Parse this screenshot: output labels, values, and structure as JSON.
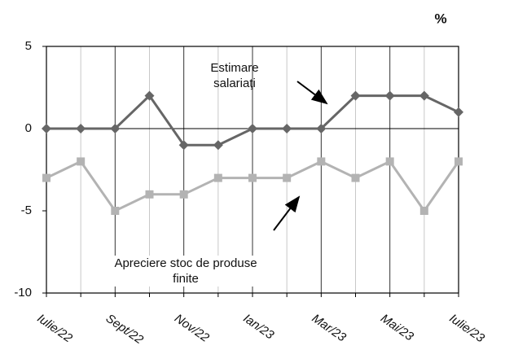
{
  "chart_data": {
    "type": "line",
    "unit": "%",
    "categories": [
      "Iulie/22",
      null,
      "Sept/22",
      null,
      "Nov/22",
      null,
      "Ian/23",
      null,
      "Mar/23",
      null,
      "Mai/23",
      null,
      "Iulie/23"
    ],
    "series": [
      {
        "name": "Estimare salariaţi",
        "color": "#666666",
        "marker": "diamond",
        "values": [
          0,
          0,
          0,
          2,
          -1,
          -1,
          0,
          0,
          0,
          2,
          2,
          2,
          1
        ]
      },
      {
        "name": "Apreciere stoc de produse finite",
        "color": "#b3b3b3",
        "marker": "square",
        "values": [
          -3,
          -2,
          -5,
          -4,
          -4,
          -3,
          -3,
          -3,
          -2,
          -3,
          -2,
          -5,
          -2
        ]
      }
    ],
    "ylim": [
      -10,
      5
    ],
    "yticks": [
      -10,
      -5,
      0,
      5
    ],
    "grid": true
  }
}
